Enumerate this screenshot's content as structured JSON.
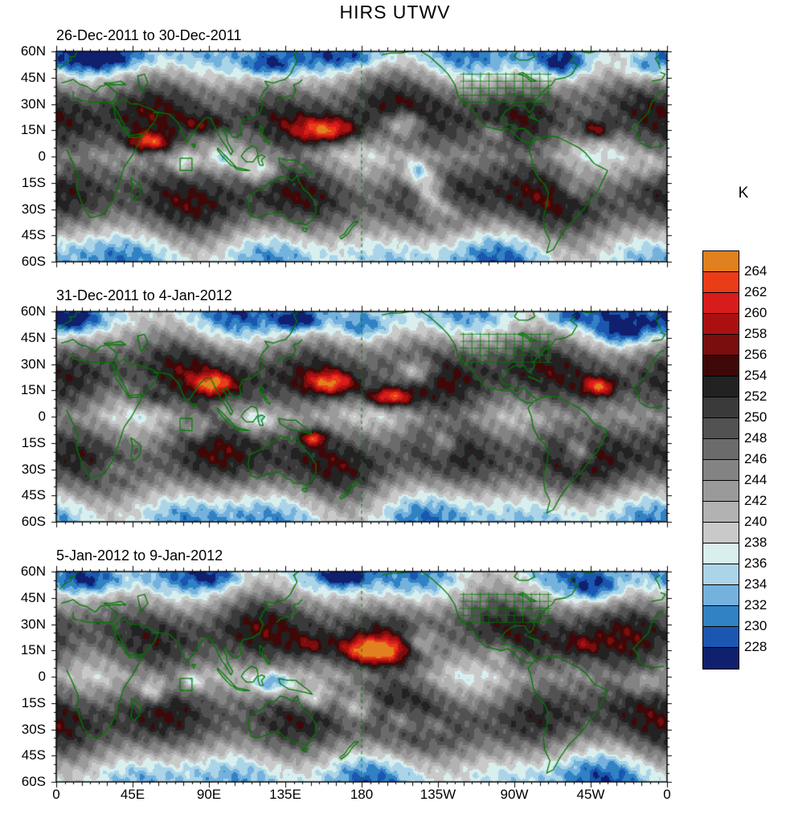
{
  "chart_data": {
    "type": "heatmap",
    "subtype": "filled-contour global brightness temperature maps",
    "title": "HIRS UTWV",
    "units": "K",
    "projection": "cylindrical, longitude 0-360E left to right, latitude 60N top to 60S bottom",
    "colorbar": {
      "label": "K",
      "levels": [
        228,
        230,
        232,
        234,
        236,
        238,
        240,
        242,
        244,
        246,
        248,
        250,
        252,
        254,
        256,
        258,
        260,
        262,
        264
      ],
      "colors_low_to_high": [
        "#10206e",
        "#1b57b0",
        "#3182c4",
        "#74b2dd",
        "#abd4e8",
        "#d8efee",
        "#c9c9c9",
        "#b2b2b2",
        "#9a9a9a",
        "#838383",
        "#6b6b6b",
        "#525252",
        "#3a3a3a",
        "#222222",
        "#3f0808",
        "#7a0d0d",
        "#ab1010",
        "#d81c1c",
        "#ea3c17",
        "#e0801e"
      ]
    },
    "x_axis": {
      "tick_labels": [
        "0",
        "45E",
        "90E",
        "135E",
        "180",
        "135W",
        "90W",
        "45W",
        "0"
      ]
    },
    "y_axis": {
      "tick_labels": [
        "60N",
        "45N",
        "30N",
        "15N",
        "0",
        "15S",
        "30S",
        "45S",
        "60S"
      ]
    },
    "map_outline_color": "#007a00",
    "panels": [
      {
        "title": "26-Dec-2011 to 30-Dec-2011",
        "texture_seed": [
          0.7,
          1.9
        ],
        "features": [
          {
            "kind": "warm",
            "lon": 55,
            "lat": 8,
            "amp": 15,
            "sx": 9,
            "sy": 4
          },
          {
            "kind": "warm",
            "lon": 88,
            "lat": 18,
            "amp": 7,
            "sx": 10,
            "sy": 4
          },
          {
            "kind": "warm",
            "lon": 160,
            "lat": 15,
            "amp": 16,
            "sx": 13,
            "sy": 5
          },
          {
            "kind": "warm",
            "lon": 318,
            "lat": 15,
            "amp": 12,
            "sx": 7,
            "sy": 4
          },
          {
            "kind": "cold",
            "lon": 205,
            "lat": 19,
            "amp": -12,
            "sx": 8,
            "sy": 5
          },
          {
            "kind": "cold",
            "lon": 212,
            "lat": -9,
            "amp": -12,
            "sx": 5,
            "sy": 5
          },
          {
            "kind": "cold",
            "lon": 220,
            "lat": -20,
            "amp": -13,
            "sx": 6,
            "sy": 8
          },
          {
            "kind": "cold",
            "lon": 230,
            "lat": -30,
            "amp": -8,
            "sx": 7,
            "sy": 5
          },
          {
            "kind": "cold",
            "lon": 120,
            "lat": -8,
            "amp": -10,
            "sx": 8,
            "sy": 5
          },
          {
            "kind": "cold",
            "lon": 75,
            "lat": -4,
            "amp": -8,
            "sx": 5,
            "sy": 4
          },
          {
            "kind": "cold",
            "lon": 97,
            "lat": -2,
            "amp": -6,
            "sx": 5,
            "sy": 4
          },
          {
            "kind": "cold",
            "lon": 28,
            "lat": 57,
            "amp": -9,
            "sx": 20,
            "sy": 6
          },
          {
            "kind": "cold",
            "lon": 125,
            "lat": 52,
            "amp": -8,
            "sx": 10,
            "sy": 5
          },
          {
            "kind": "cold",
            "lon": 178,
            "lat": 57,
            "amp": -8,
            "sx": 16,
            "sy": 5
          },
          {
            "kind": "cold",
            "lon": 258,
            "lat": 14,
            "amp": -7,
            "sx": 6,
            "sy": 4
          },
          {
            "kind": "cold",
            "lon": 298,
            "lat": 53,
            "amp": -8,
            "sx": 10,
            "sy": 6
          },
          {
            "kind": "cold",
            "lon": 345,
            "lat": 50,
            "amp": -7,
            "sx": 9,
            "sy": 5
          },
          {
            "kind": "cold",
            "lon": 352,
            "lat": -6,
            "amp": -6,
            "sx": 7,
            "sy": 5
          },
          {
            "kind": "cold",
            "lon": 305,
            "lat": -18,
            "amp": -5,
            "sx": 6,
            "sy": 5
          }
        ]
      },
      {
        "title": "31-Dec-2011 to 4-Jan-2012",
        "texture_seed": [
          2.3,
          0.4
        ],
        "features": [
          {
            "kind": "warm",
            "lon": 93,
            "lat": 19,
            "amp": 12,
            "sx": 8,
            "sy": 4
          },
          {
            "kind": "warm",
            "lon": 163,
            "lat": 19,
            "amp": 15,
            "sx": 11,
            "sy": 5
          },
          {
            "kind": "warm",
            "lon": 196,
            "lat": 11,
            "amp": 18,
            "sx": 10,
            "sy": 4
          },
          {
            "kind": "warm",
            "lon": 320,
            "lat": 17,
            "amp": 14,
            "sx": 7,
            "sy": 4
          },
          {
            "kind": "warm",
            "lon": 152,
            "lat": -12,
            "amp": 14,
            "sx": 5,
            "sy": 3
          },
          {
            "kind": "warm",
            "lon": 55,
            "lat": 10,
            "amp": 6,
            "sx": 8,
            "sy": 4
          },
          {
            "kind": "cold",
            "lon": 212,
            "lat": 26,
            "amp": -12,
            "sx": 8,
            "sy": 5
          },
          {
            "kind": "cold",
            "lon": 117,
            "lat": -2,
            "amp": -10,
            "sx": 8,
            "sy": 5
          },
          {
            "kind": "cold",
            "lon": 100,
            "lat": 5,
            "amp": -6,
            "sx": 5,
            "sy": 4
          },
          {
            "kind": "cold",
            "lon": 85,
            "lat": -7,
            "amp": -7,
            "sx": 5,
            "sy": 4
          },
          {
            "kind": "cold",
            "lon": 228,
            "lat": -15,
            "amp": -8,
            "sx": 6,
            "sy": 6
          },
          {
            "kind": "cold",
            "lon": 308,
            "lat": -20,
            "amp": -10,
            "sx": 6,
            "sy": 6
          },
          {
            "kind": "cold",
            "lon": 8,
            "lat": 55,
            "amp": -10,
            "sx": 13,
            "sy": 6
          },
          {
            "kind": "cold",
            "lon": 143,
            "lat": 55,
            "amp": -12,
            "sx": 10,
            "sy": 5
          },
          {
            "kind": "cold",
            "lon": 180,
            "lat": 50,
            "amp": -6,
            "sx": 10,
            "sy": 5
          },
          {
            "kind": "cold",
            "lon": 335,
            "lat": 48,
            "amp": -8,
            "sx": 11,
            "sy": 6
          },
          {
            "kind": "cold",
            "lon": 300,
            "lat": 57,
            "amp": -7,
            "sx": 8,
            "sy": 4
          },
          {
            "kind": "cold",
            "lon": 33,
            "lat": -30,
            "amp": -5,
            "sx": 8,
            "sy": 4
          }
        ]
      },
      {
        "title": "5-Jan-2012 to 9-Jan-2012",
        "texture_seed": [
          4.1,
          2.7
        ],
        "features": [
          {
            "kind": "warm",
            "lon": 187,
            "lat": 15,
            "amp": 17,
            "sx": 13,
            "sy": 5
          },
          {
            "kind": "warm",
            "lon": 150,
            "lat": 18,
            "amp": 6,
            "sx": 8,
            "sy": 4
          },
          {
            "kind": "warm",
            "lon": 310,
            "lat": 18,
            "amp": 5,
            "sx": 8,
            "sy": 4
          },
          {
            "kind": "cold",
            "lon": 128,
            "lat": -4,
            "amp": -12,
            "sx": 9,
            "sy": 5
          },
          {
            "kind": "cold",
            "lon": 152,
            "lat": -12,
            "amp": -10,
            "sx": 7,
            "sy": 5
          },
          {
            "kind": "cold",
            "lon": 178,
            "lat": -18,
            "amp": -11,
            "sx": 8,
            "sy": 6
          },
          {
            "kind": "cold",
            "lon": 203,
            "lat": -24,
            "amp": -10,
            "sx": 8,
            "sy": 6
          },
          {
            "kind": "cold",
            "lon": 222,
            "lat": -28,
            "amp": -7,
            "sx": 7,
            "sy": 5
          },
          {
            "kind": "cold",
            "lon": 57,
            "lat": -8,
            "amp": -11,
            "sx": 6,
            "sy": 5
          },
          {
            "kind": "cold",
            "lon": 80,
            "lat": -3,
            "amp": -8,
            "sx": 5,
            "sy": 4
          },
          {
            "kind": "cold",
            "lon": 20,
            "lat": 55,
            "amp": -8,
            "sx": 13,
            "sy": 6
          },
          {
            "kind": "cold",
            "lon": 95,
            "lat": 57,
            "amp": -7,
            "sx": 11,
            "sy": 5
          },
          {
            "kind": "cold",
            "lon": 170,
            "lat": 58,
            "amp": -12,
            "sx": 8,
            "sy": 4
          },
          {
            "kind": "cold",
            "lon": 318,
            "lat": 50,
            "amp": -8,
            "sx": 11,
            "sy": 6
          },
          {
            "kind": "cold",
            "lon": 215,
            "lat": 20,
            "amp": -9,
            "sx": 7,
            "sy": 5
          },
          {
            "kind": "cold",
            "lon": 262,
            "lat": 14,
            "amp": -6,
            "sx": 5,
            "sy": 4
          },
          {
            "kind": "cold",
            "lon": 345,
            "lat": -5,
            "amp": -5,
            "sx": 7,
            "sy": 4
          }
        ]
      }
    ]
  }
}
